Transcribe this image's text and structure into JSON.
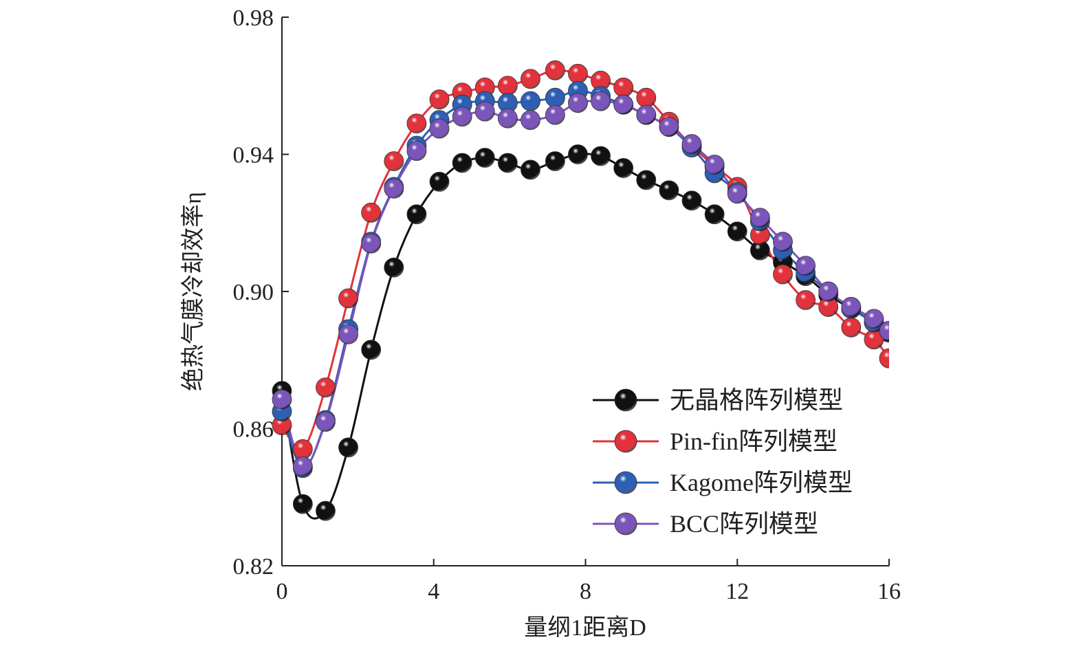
{
  "chart_data": {
    "type": "line",
    "xlabel": "量纲1距离D",
    "ylabel": "绝热气膜冷却效率η",
    "xlim": [
      0,
      16
    ],
    "ylim": [
      0.82,
      0.98
    ],
    "xticks": [
      "0",
      "4",
      "8",
      "12",
      "16"
    ],
    "yticks": [
      "0.82",
      "0.86",
      "0.90",
      "0.94",
      "0.98"
    ],
    "grid": false,
    "legend_position": "bottom-right",
    "series": [
      {
        "name": "无晶格阵列模型",
        "color": "#111111",
        "x": [
          0,
          0.55,
          1.15,
          1.75,
          2.35,
          2.95,
          3.55,
          4.15,
          4.75,
          5.35,
          5.95,
          6.55,
          7.2,
          7.8,
          8.4,
          9.0,
          9.6,
          10.2,
          10.8,
          11.4,
          12.0,
          12.6,
          13.2,
          13.8,
          14.4,
          15.0,
          15.6,
          16.0
        ],
        "y": [
          0.871,
          0.838,
          0.836,
          0.8545,
          0.883,
          0.907,
          0.9225,
          0.932,
          0.9375,
          0.939,
          0.9375,
          0.9355,
          0.938,
          0.94,
          0.9395,
          0.936,
          0.9325,
          0.9295,
          0.9265,
          0.9225,
          0.9175,
          0.912,
          0.9085,
          0.9045,
          0.899,
          0.895,
          0.891,
          0.888
        ]
      },
      {
        "name": "Pin-fin阵列模型",
        "color": "#e2323c",
        "x": [
          0,
          0.55,
          1.15,
          1.75,
          2.35,
          2.95,
          3.55,
          4.15,
          4.75,
          5.35,
          5.95,
          6.55,
          7.2,
          7.8,
          8.4,
          9.0,
          9.6,
          10.2,
          10.8,
          11.4,
          12.0,
          12.6,
          13.2,
          13.8,
          14.4,
          15.0,
          15.6,
          16.0
        ],
        "y": [
          0.861,
          0.854,
          0.872,
          0.898,
          0.923,
          0.938,
          0.949,
          0.956,
          0.958,
          0.9595,
          0.96,
          0.962,
          0.9645,
          0.9635,
          0.9615,
          0.9595,
          0.9565,
          0.9495,
          0.9425,
          0.9365,
          0.9305,
          0.9165,
          0.905,
          0.8975,
          0.8955,
          0.8895,
          0.886,
          0.8805
        ]
      },
      {
        "name": "Kagome阵列模型",
        "color": "#2d5fb4",
        "x": [
          0,
          0.55,
          1.15,
          1.75,
          2.35,
          2.95,
          3.55,
          4.15,
          4.75,
          5.35,
          5.95,
          6.55,
          7.2,
          7.8,
          8.4,
          9.0,
          9.6,
          10.2,
          10.8,
          11.4,
          12.0,
          12.6,
          13.2,
          13.8,
          14.4,
          15.0,
          15.6,
          16.0
        ],
        "y": [
          0.865,
          0.8485,
          0.8625,
          0.889,
          0.9145,
          0.9305,
          0.9425,
          0.95,
          0.9545,
          0.9555,
          0.955,
          0.9555,
          0.9565,
          0.9585,
          0.957,
          0.9545,
          0.9515,
          0.948,
          0.942,
          0.9345,
          0.929,
          0.9205,
          0.912,
          0.9055,
          0.9,
          0.895,
          0.891,
          0.8885
        ]
      },
      {
        "name": "BCC阵列模型",
        "color": "#7b55b9",
        "x": [
          0,
          0.55,
          1.15,
          1.75,
          2.35,
          2.95,
          3.55,
          4.15,
          4.75,
          5.35,
          5.95,
          6.55,
          7.2,
          7.8,
          8.4,
          9.0,
          9.6,
          10.2,
          10.8,
          11.4,
          12.0,
          12.6,
          13.2,
          13.8,
          14.4,
          15.0,
          15.6,
          16.0
        ],
        "y": [
          0.8685,
          0.849,
          0.862,
          0.8875,
          0.914,
          0.93,
          0.941,
          0.9475,
          0.951,
          0.9525,
          0.9505,
          0.95,
          0.9515,
          0.955,
          0.9555,
          0.9545,
          0.9515,
          0.948,
          0.943,
          0.937,
          0.9285,
          0.9215,
          0.9145,
          0.9075,
          0.9,
          0.8955,
          0.892,
          0.8885
        ]
      }
    ]
  }
}
